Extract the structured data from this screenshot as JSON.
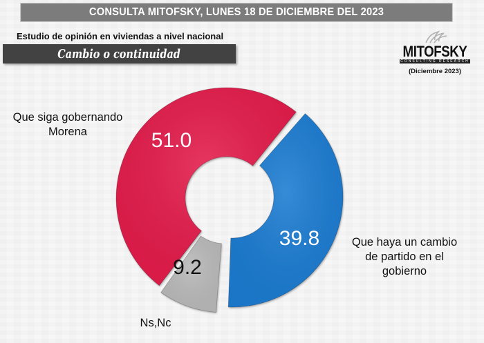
{
  "header": {
    "banner": "CONSULTA MITOFSKY, LUNES 18 DE DICIEMBRE DEL 2023",
    "subtitle": "Estudio de opinión en viviendas a nivel nacional",
    "section_title": "Cambio o continuidad"
  },
  "logo": {
    "name": "MITOFSKY",
    "tagline": "CONSULTING RESEARCH",
    "date": "(Diciembre 2023)"
  },
  "chart_data": {
    "type": "pie",
    "variant": "donut",
    "title": "Cambio o continuidad",
    "unit": "%",
    "slices": [
      {
        "name": "Que siga gobernando Morena",
        "value": 51.0,
        "label": "51.0",
        "color": "#e31b4c",
        "label_color": "#ffffff",
        "exploded": false
      },
      {
        "name": "Que haya un cambio de partido en el gobierno",
        "value": 39.8,
        "label": "39.8",
        "color": "#1f7bd1",
        "label_color": "#ffffff",
        "exploded": true
      },
      {
        "name": "Ns,Nc",
        "value": 9.2,
        "label": "9.2",
        "color": "#b9b9b9",
        "label_color": "#111111",
        "exploded": true
      }
    ],
    "legend": "category labels placed beside slices"
  },
  "labels": {
    "morena": "Que siga gobernando Morena",
    "cambio": "Que haya un cambio de partido en el gobierno",
    "ns": "Ns,Nc"
  }
}
